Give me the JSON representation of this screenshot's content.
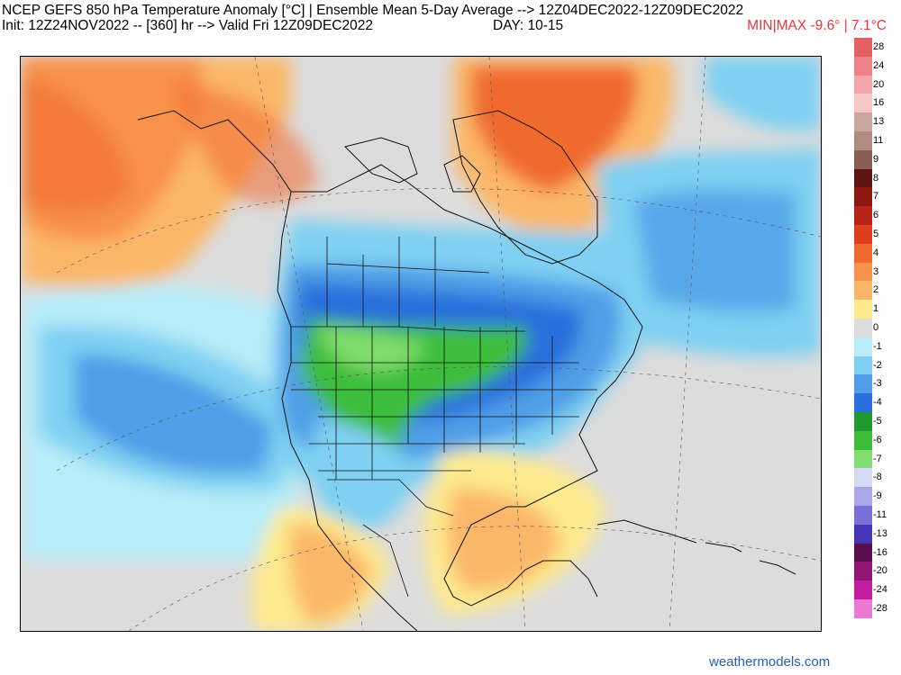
{
  "header": {
    "title": "NCEP GEFS 850 hPa Temperature Anomaly [°C] | Ensemble Mean 5-Day Average --> 12Z04DEC2022-12Z09DEC2022",
    "init_line": "Init: 12Z24NOV2022 -- [360] hr --> Valid Fri 12Z09DEC2022",
    "day_range": "DAY: 10-15",
    "min_max": "MIN|MAX -9.6° | 7.1°C"
  },
  "legend": [
    {
      "label": "28",
      "color": "#e45f62"
    },
    {
      "label": "24",
      "color": "#ec8488"
    },
    {
      "label": "20",
      "color": "#f3a6a9"
    },
    {
      "label": "16",
      "color": "#f7c6c7"
    },
    {
      "label": "13",
      "color": "#c9a7a1"
    },
    {
      "label": "11",
      "color": "#b08b83"
    },
    {
      "label": "9",
      "color": "#8b5e56"
    },
    {
      "label": "8",
      "color": "#5e1410"
    },
    {
      "label": "7",
      "color": "#8a1811"
    },
    {
      "label": "6",
      "color": "#b7241a"
    },
    {
      "label": "5",
      "color": "#e03c1e"
    },
    {
      "label": "4",
      "color": "#f06a2f"
    },
    {
      "label": "3",
      "color": "#f8914a"
    },
    {
      "label": "2",
      "color": "#fbb769"
    },
    {
      "label": "1",
      "color": "#fde98e"
    },
    {
      "label": "0",
      "color": "#dcdcdc"
    },
    {
      "label": "-1",
      "color": "#b7ecf8"
    },
    {
      "label": "-2",
      "color": "#7fd0f2"
    },
    {
      "label": "-3",
      "color": "#4f9ee6"
    },
    {
      "label": "-4",
      "color": "#2a6fdd"
    },
    {
      "label": "-5",
      "color": "#1e9a30"
    },
    {
      "label": "-6",
      "color": "#3ebd3a"
    },
    {
      "label": "-7",
      "color": "#7fdc6d"
    },
    {
      "label": "-8",
      "color": "#d6d9f3"
    },
    {
      "label": "-9",
      "color": "#a9a5e6"
    },
    {
      "label": "-11",
      "color": "#7a70d8"
    },
    {
      "label": "-13",
      "color": "#4736b8"
    },
    {
      "label": "-16",
      "color": "#5a0f4c"
    },
    {
      "label": "-20",
      "color": "#8f1577"
    },
    {
      "label": "-24",
      "color": "#c21ea0"
    },
    {
      "label": "-28",
      "color": "#ec79d4"
    }
  ],
  "credit": "weathermodels.com"
}
